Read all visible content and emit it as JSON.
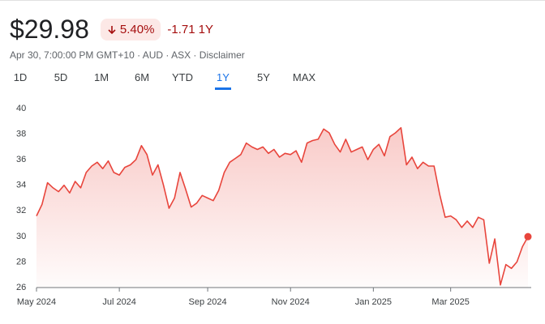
{
  "header": {
    "price": "$29.98",
    "change_percent": "5.40%",
    "change_value": "-1.71",
    "change_period": "1Y",
    "subtitle": "Apr 30, 7:00:00 PM GMT+10 · AUD · ASX ·",
    "disclaimer": "Disclaimer"
  },
  "tabs": {
    "labels": [
      "1D",
      "5D",
      "1M",
      "6M",
      "YTD",
      "1Y",
      "5Y",
      "MAX"
    ],
    "selected": 5
  },
  "chart_data": {
    "type": "line",
    "color": "#e8453c",
    "categories": [
      "May 2024",
      null,
      null,
      null,
      null,
      null,
      null,
      null,
      null,
      null,
      null,
      null,
      null,
      null,
      null,
      "Jul 2024",
      null,
      null,
      null,
      null,
      null,
      null,
      null,
      null,
      null,
      null,
      null,
      null,
      null,
      null,
      null,
      "Sep 2024",
      null,
      null,
      null,
      null,
      null,
      null,
      null,
      null,
      null,
      null,
      null,
      null,
      null,
      null,
      "Nov 2024",
      null,
      null,
      null,
      null,
      null,
      null,
      null,
      null,
      null,
      null,
      null,
      null,
      null,
      null,
      "Jan 2025",
      null,
      null,
      null,
      null,
      null,
      null,
      null,
      null,
      null,
      null,
      null,
      null,
      null,
      "Mar 2025",
      null,
      null,
      null,
      null,
      null,
      null,
      null,
      null,
      null,
      null,
      null,
      null,
      null,
      null
    ],
    "series": [
      {
        "values": [
          31.6,
          32.5,
          34.2,
          33.8,
          33.5,
          34.0,
          33.4,
          34.3,
          33.8,
          35.0,
          35.5,
          35.8,
          35.3,
          35.9,
          35.0,
          34.8,
          35.4,
          35.6,
          36.0,
          37.1,
          36.4,
          34.8,
          35.6,
          34.0,
          32.2,
          33.0,
          35.0,
          33.7,
          32.3,
          32.6,
          33.2,
          33.0,
          32.8,
          33.6,
          35.0,
          35.8,
          36.1,
          36.4,
          37.3,
          37.0,
          36.8,
          37.0,
          36.5,
          36.8,
          36.2,
          36.5,
          36.4,
          36.7,
          35.8,
          37.3,
          37.5,
          37.6,
          38.4,
          38.1,
          37.2,
          36.6,
          37.6,
          36.6,
          36.8,
          37.0,
          36.0,
          36.8,
          37.2,
          36.3,
          37.8,
          38.1,
          38.5,
          35.6,
          36.2,
          35.3,
          35.8,
          35.5,
          35.5,
          33.3,
          31.5,
          31.6,
          31.3,
          30.7,
          31.2,
          30.7,
          31.5,
          31.3,
          27.9,
          29.8,
          26.2,
          27.8,
          27.5,
          28.0,
          29.2,
          29.98
        ]
      }
    ],
    "ylim": [
      26,
      40
    ],
    "yticks": [
      26,
      28,
      30,
      32,
      34,
      36,
      38,
      40
    ],
    "grid": false
  }
}
